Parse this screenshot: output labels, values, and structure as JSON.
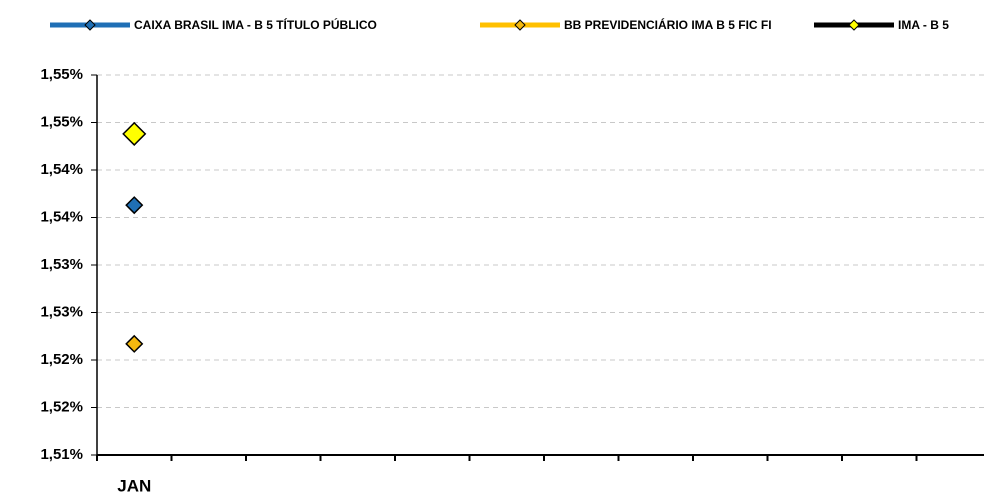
{
  "chart_data": {
    "type": "line",
    "categories": [
      "JAN",
      null,
      null,
      null,
      null,
      null,
      null,
      null,
      null,
      null,
      null,
      null
    ],
    "series": [
      {
        "name": "CAIXA BRASIL IMA - B 5 TÍTULO PÚBLICO",
        "color": "#1f6fb5",
        "marker_color": "#1f6fb5",
        "values": [
          1.5363,
          null,
          null,
          null,
          null,
          null,
          null,
          null,
          null,
          null,
          null,
          null
        ]
      },
      {
        "name": "BB PREVIDENCIÁRIO IMA B 5 FIC FI",
        "color": "#ffc000",
        "marker_color": "#f5b90f",
        "values": [
          1.5217,
          null,
          null,
          null,
          null,
          null,
          null,
          null,
          null,
          null,
          null,
          null
        ]
      },
      {
        "name": "IMA - B 5",
        "color": "#000000",
        "marker_color": "#ffff00",
        "values": [
          1.5438,
          null,
          null,
          null,
          null,
          null,
          null,
          null,
          null,
          null,
          null,
          null
        ]
      }
    ],
    "ylim": [
      1.51,
      1.55
    ],
    "yticks": [
      {
        "value": 1.51,
        "label": "1,51%"
      },
      {
        "value": 1.515,
        "label": "1,52%"
      },
      {
        "value": 1.52,
        "label": "1,52%"
      },
      {
        "value": 1.525,
        "label": "1,53%"
      },
      {
        "value": 1.53,
        "label": "1,53%"
      },
      {
        "value": 1.535,
        "label": "1,54%"
      },
      {
        "value": 1.54,
        "label": "1,54%"
      },
      {
        "value": 1.545,
        "label": "1,55%"
      },
      {
        "value": 1.55,
        "label": "1,55%"
      }
    ],
    "grid": true,
    "legend": "top"
  }
}
